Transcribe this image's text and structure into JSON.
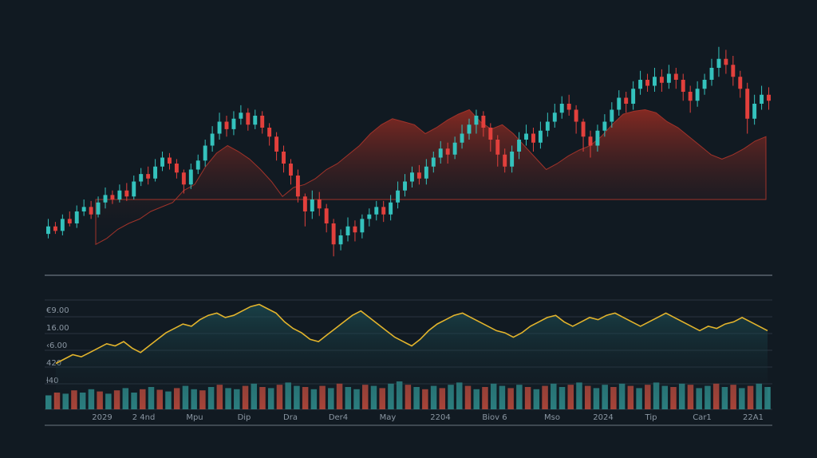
{
  "colors": {
    "background": "#111a22",
    "up": "#34c2bd",
    "down": "#e2403c",
    "area": "#8a2a22",
    "line": "#e3b42c",
    "grid": "#2a3440",
    "divider": "#5a646e",
    "volume_up": "#2f8a8a",
    "volume_down": "#b8493c",
    "tick_text": "#8a96a2"
  },
  "chart_data": [
    {
      "type": "candlestick",
      "title": "",
      "grid": false,
      "area_series": {
        "values": [
          38,
          42,
          48,
          52,
          55,
          60,
          63,
          66,
          74,
          78,
          90,
          99,
          104,
          100,
          95,
          88,
          80,
          70,
          76,
          78,
          82,
          88,
          92,
          98,
          104,
          112,
          118,
          122,
          120,
          118,
          112,
          116,
          121,
          125,
          128,
          120,
          115,
          118,
          112,
          104,
          96,
          88,
          92,
          97,
          101,
          104,
          110,
          118,
          125,
          127,
          128,
          126,
          120,
          116,
          110,
          104,
          98,
          95,
          98,
          102,
          107,
          110
        ]
      },
      "candles": [
        [
          45,
          50,
          42,
          55
        ],
        [
          50,
          47,
          45,
          53
        ],
        [
          47,
          55,
          44,
          58
        ],
        [
          55,
          52,
          50,
          60
        ],
        [
          52,
          60,
          49,
          64
        ],
        [
          60,
          63,
          57,
          68
        ],
        [
          63,
          58,
          55,
          67
        ],
        [
          58,
          66,
          56,
          70
        ],
        [
          66,
          71,
          62,
          76
        ],
        [
          71,
          68,
          65,
          74
        ],
        [
          68,
          74,
          66,
          78
        ],
        [
          74,
          70,
          67,
          79
        ],
        [
          70,
          80,
          68,
          84
        ],
        [
          80,
          85,
          77,
          89
        ],
        [
          85,
          82,
          78,
          90
        ],
        [
          82,
          90,
          80,
          95
        ],
        [
          90,
          96,
          87,
          100
        ],
        [
          96,
          92,
          88,
          99
        ],
        [
          92,
          86,
          82,
          95
        ],
        [
          86,
          78,
          72,
          88
        ],
        [
          78,
          88,
          75,
          92
        ],
        [
          88,
          94,
          85,
          98
        ],
        [
          94,
          104,
          90,
          108
        ],
        [
          104,
          112,
          100,
          117
        ],
        [
          112,
          120,
          108,
          126
        ],
        [
          120,
          115,
          110,
          124
        ],
        [
          115,
          122,
          111,
          127
        ],
        [
          122,
          126,
          118,
          131
        ],
        [
          126,
          118,
          114,
          129
        ],
        [
          118,
          124,
          115,
          128
        ],
        [
          124,
          116,
          112,
          127
        ],
        [
          116,
          110,
          104,
          119
        ],
        [
          110,
          100,
          94,
          113
        ],
        [
          100,
          92,
          86,
          104
        ],
        [
          92,
          84,
          78,
          95
        ],
        [
          84,
          70,
          66,
          88
        ],
        [
          70,
          60,
          50,
          72
        ],
        [
          60,
          68,
          55,
          74
        ],
        [
          68,
          62,
          57,
          73
        ],
        [
          62,
          52,
          46,
          65
        ],
        [
          52,
          38,
          30,
          55
        ],
        [
          38,
          44,
          34,
          48
        ],
        [
          44,
          50,
          40,
          56
        ],
        [
          50,
          46,
          40,
          54
        ],
        [
          46,
          55,
          42,
          58
        ],
        [
          55,
          58,
          50,
          62
        ],
        [
          58,
          63,
          54,
          67
        ],
        [
          63,
          58,
          53,
          67
        ],
        [
          58,
          66,
          54,
          71
        ],
        [
          66,
          74,
          62,
          80
        ],
        [
          74,
          80,
          70,
          85
        ],
        [
          80,
          86,
          76,
          90
        ],
        [
          86,
          82,
          78,
          91
        ],
        [
          82,
          90,
          78,
          95
        ],
        [
          90,
          96,
          86,
          100
        ],
        [
          96,
          102,
          92,
          107
        ],
        [
          102,
          98,
          92,
          106
        ],
        [
          98,
          106,
          95,
          110
        ],
        [
          106,
          112,
          102,
          118
        ],
        [
          112,
          118,
          108,
          122
        ],
        [
          118,
          124,
          112,
          128
        ],
        [
          124,
          116,
          110,
          127
        ],
        [
          116,
          108,
          100,
          119
        ],
        [
          108,
          98,
          90,
          111
        ],
        [
          98,
          90,
          86,
          102
        ],
        [
          90,
          100,
          86,
          104
        ],
        [
          100,
          108,
          95,
          113
        ],
        [
          108,
          112,
          104,
          118
        ],
        [
          112,
          106,
          100,
          116
        ],
        [
          106,
          114,
          102,
          120
        ],
        [
          114,
          120,
          110,
          126
        ],
        [
          120,
          126,
          116,
          132
        ],
        [
          126,
          132,
          122,
          137
        ],
        [
          132,
          128,
          124,
          138
        ],
        [
          128,
          120,
          112,
          131
        ],
        [
          120,
          110,
          100,
          122
        ],
        [
          110,
          104,
          96,
          114
        ],
        [
          104,
          114,
          100,
          118
        ],
        [
          114,
          120,
          110,
          125
        ],
        [
          120,
          128,
          116,
          133
        ],
        [
          128,
          136,
          124,
          141
        ],
        [
          136,
          132,
          126,
          140
        ],
        [
          132,
          142,
          128,
          147
        ],
        [
          142,
          148,
          138,
          154
        ],
        [
          148,
          144,
          140,
          152
        ],
        [
          144,
          150,
          140,
          156
        ],
        [
          150,
          146,
          140,
          155
        ],
        [
          146,
          152,
          142,
          158
        ],
        [
          152,
          148,
          142,
          156
        ],
        [
          148,
          140,
          134,
          152
        ],
        [
          140,
          134,
          126,
          144
        ],
        [
          134,
          142,
          130,
          147
        ],
        [
          142,
          148,
          138,
          152
        ],
        [
          148,
          156,
          144,
          162
        ],
        [
          156,
          162,
          150,
          170
        ],
        [
          162,
          158,
          152,
          168
        ],
        [
          158,
          150,
          144,
          164
        ],
        [
          150,
          142,
          136,
          154
        ],
        [
          142,
          122,
          112,
          146
        ],
        [
          122,
          132,
          118,
          138
        ],
        [
          132,
          138,
          128,
          144
        ],
        [
          138,
          134,
          128,
          143
        ]
      ],
      "ylim": [
        20,
        180
      ]
    },
    {
      "type": "line",
      "title": "",
      "grid": true,
      "y_ticks": [
        "€9.00",
        "16.00",
        "‹6.00",
        "420",
        "ƚ40"
      ],
      "x_ticks": [
        "2029",
        "2 4nd",
        "Mpu",
        "Dip",
        "Dra",
        "Der4",
        "May",
        "2204",
        "Biov 6",
        "Mso",
        "2024",
        "Tip",
        "Car1",
        "22A1"
      ],
      "ylim": [
        0,
        100
      ],
      "line_values": [
        42,
        46,
        50,
        48,
        52,
        56,
        60,
        58,
        62,
        56,
        52,
        58,
        64,
        70,
        74,
        78,
        76,
        82,
        86,
        88,
        84,
        86,
        90,
        94,
        96,
        92,
        88,
        80,
        74,
        70,
        64,
        62,
        68,
        74,
        80,
        86,
        90,
        84,
        78,
        72,
        66,
        62,
        58,
        64,
        72,
        78,
        82,
        86,
        88,
        84,
        80,
        76,
        72,
        70,
        66,
        70,
        76,
        80,
        84,
        86,
        80,
        76,
        80,
        84,
        82,
        86,
        88,
        84,
        80,
        76,
        80,
        84,
        88,
        84,
        80,
        76,
        72,
        76,
        74,
        78,
        80,
        84,
        80,
        76,
        72
      ],
      "volume_values": [
        25,
        30,
        28,
        34,
        30,
        36,
        32,
        28,
        34,
        38,
        30,
        36,
        40,
        35,
        32,
        38,
        42,
        36,
        34,
        40,
        44,
        38,
        36,
        42,
        46,
        40,
        38,
        44,
        48,
        42,
        40,
        36,
        42,
        38,
        46,
        40,
        36,
        44,
        42,
        38,
        46,
        50,
        44,
        40,
        36,
        42,
        38,
        44,
        48,
        42,
        36,
        40,
        46,
        42,
        38,
        44,
        40,
        36,
        42,
        46,
        40,
        44,
        48,
        42,
        38,
        44,
        40,
        46,
        42,
        38,
        44,
        48,
        42,
        40,
        46,
        44,
        38,
        42,
        46,
        40,
        44,
        38,
        42,
        46,
        40
      ],
      "volume_up": [
        true,
        false,
        true,
        false,
        true,
        true,
        false,
        true,
        false,
        true,
        true,
        false,
        true,
        false,
        true,
        false,
        true,
        true,
        false,
        true,
        false,
        true,
        true,
        false,
        true,
        false,
        true,
        false,
        true,
        true,
        false,
        true,
        false,
        true,
        false,
        true,
        true,
        false,
        true,
        false,
        true,
        true,
        false,
        true,
        false,
        true,
        false,
        true,
        true,
        false,
        true,
        false,
        true,
        true,
        false,
        true,
        false,
        true,
        false,
        true,
        true,
        false,
        true,
        false,
        true,
        true,
        false,
        true,
        false,
        true,
        false,
        true,
        true,
        false,
        true,
        false,
        true,
        true,
        false,
        true,
        false,
        true,
        false,
        true,
        true
      ]
    }
  ]
}
